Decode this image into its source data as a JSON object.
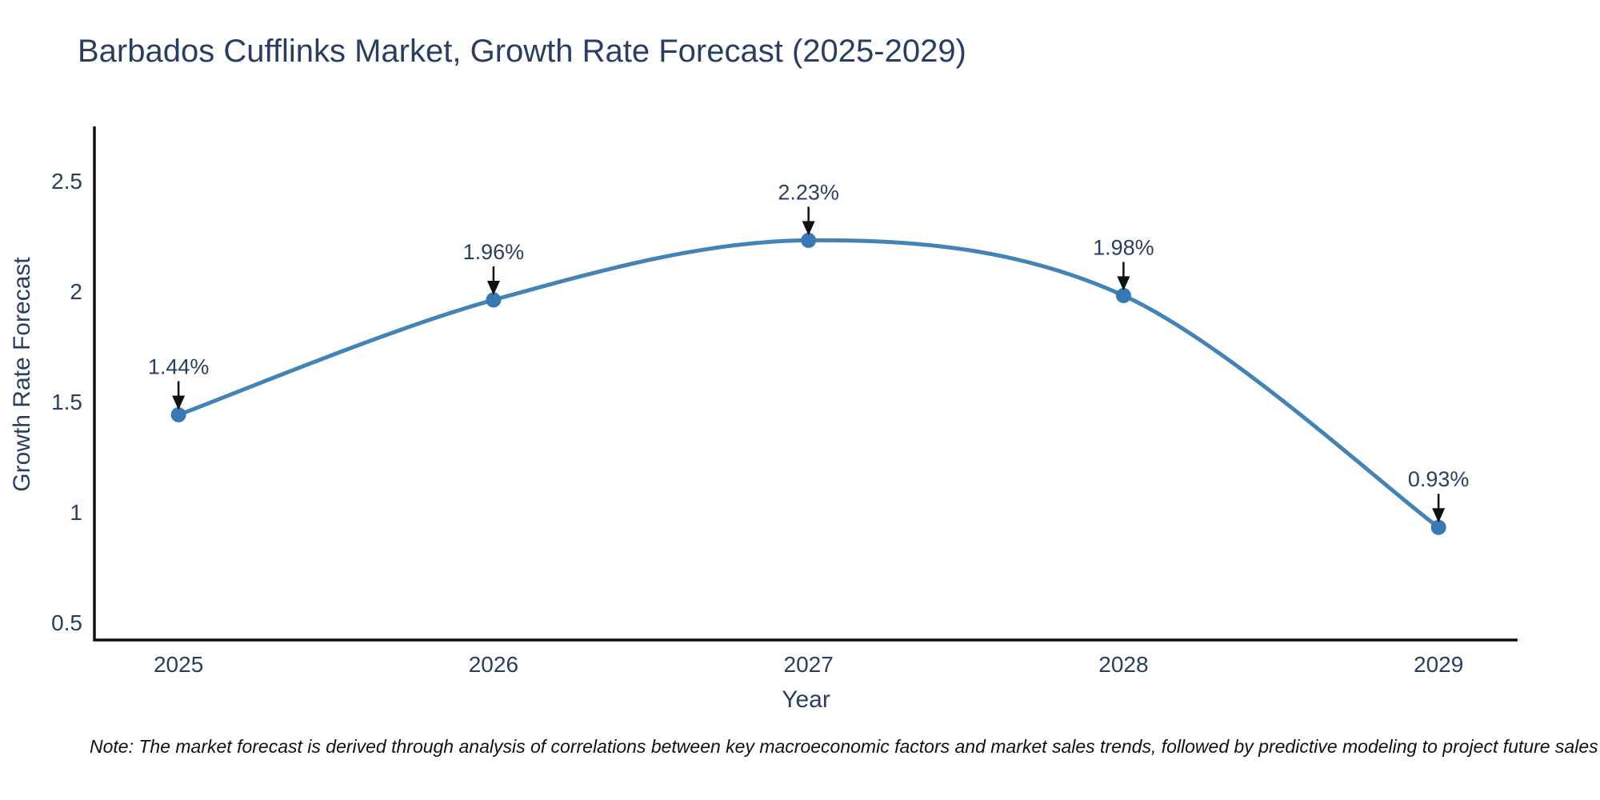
{
  "page": {
    "title": "Barbados Cufflinks Market, Growth Rate Forecast (2025-2029)",
    "note": "Note: The market forecast is derived through analysis of correlations between key macroeconomic factors and market sales trends, followed by predictive modeling to project future sales"
  },
  "chart_data": {
    "type": "line",
    "title": "Barbados Cufflinks Market, Growth Rate Forecast (2025-2029)",
    "xlabel": "Year",
    "ylabel": "Growth Rate Forecast",
    "x": [
      2025,
      2026,
      2027,
      2028,
      2029
    ],
    "series": [
      {
        "name": "Growth Rate Forecast",
        "values": [
          1.44,
          1.96,
          2.23,
          1.98,
          0.93
        ]
      }
    ],
    "point_labels": [
      "1.44%",
      "1.96%",
      "2.23%",
      "1.98%",
      "0.93%"
    ],
    "x_tick_labels": [
      "2025",
      "2026",
      "2027",
      "2028",
      "2029"
    ],
    "y_ticks": [
      0.5,
      1,
      1.5,
      2,
      2.5
    ],
    "y_tick_labels": [
      "0.5",
      "1",
      "1.5",
      "2",
      "2.5"
    ],
    "xlim": [
      2024.733,
      2029.251
    ],
    "ylim": [
      0.42,
      2.746
    ],
    "grid": false,
    "legend": "none",
    "line_shape": "spline",
    "marker": "circle",
    "colors": {
      "line": "#4383b6",
      "marker": "#3878b4",
      "axis": "#111111",
      "text": "#2a3f5f",
      "annotation_text": "#2a3f5f",
      "annotation_arrow": "#111111",
      "note": "#111111",
      "background": "#ffffff"
    }
  }
}
